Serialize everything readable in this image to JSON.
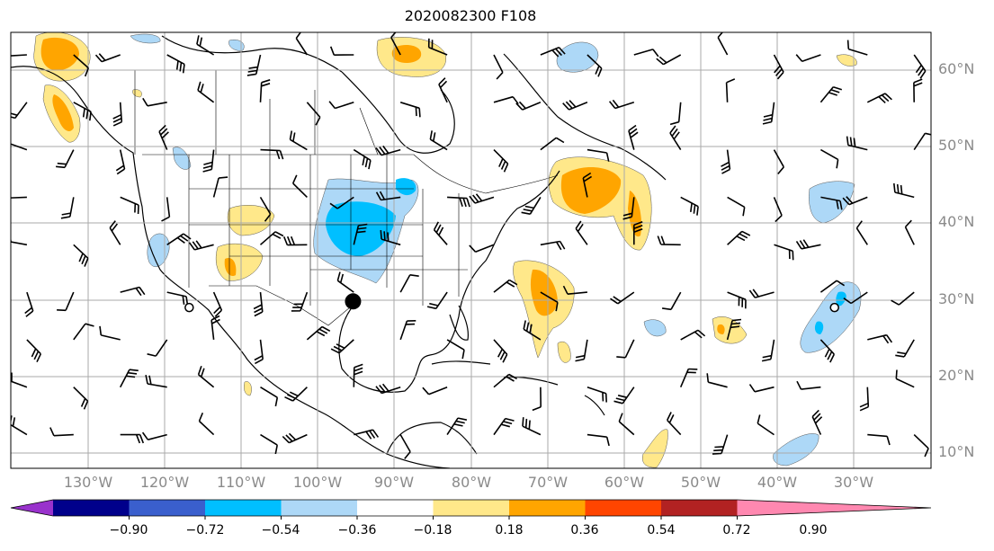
{
  "title": "2020082300 F108",
  "latitude_labels": [
    "60°N",
    "50°N",
    "40°N",
    "30°N",
    "20°N",
    "10°N"
  ],
  "longitude_labels": [
    "130°W",
    "120°W",
    "110°W",
    "100°W",
    "90°W",
    "80°W",
    "70°W",
    "60°W",
    "50°W",
    "40°W",
    "30°W"
  ],
  "colorbar": {
    "colors": [
      "#9932cc",
      "#00008b",
      "#3a5fcd",
      "#00bfff",
      "#add8f7",
      "#ffffff",
      "#ffe88a",
      "#ffa500",
      "#ff4500",
      "#b22222",
      "#ff88b0"
    ],
    "tick_labels": [
      "−0.90",
      "−0.72",
      "−0.54",
      "−0.36",
      "−0.18",
      "0.18",
      "0.36",
      "0.54",
      "0.72",
      "0.90"
    ]
  },
  "markers": [
    {
      "name": "filled-dot-houston",
      "lon": -95.4,
      "lat": 29.8
    },
    {
      "name": "open-circle-eastern-pacific",
      "lon": -116.8,
      "lat": 29.0
    },
    {
      "name": "open-circle-central-atlantic",
      "lon": -32.5,
      "lat": 29.0
    }
  ]
}
